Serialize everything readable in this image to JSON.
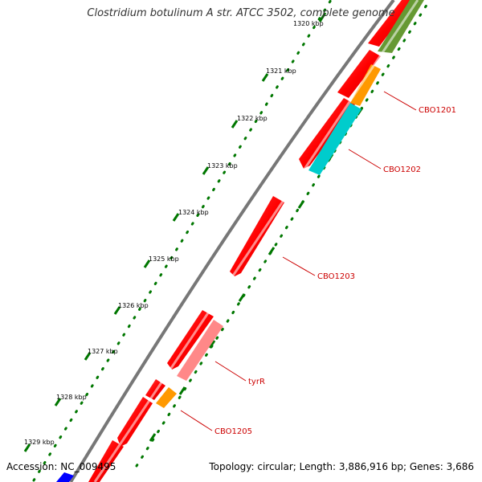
{
  "title": "Clostridium botulinum A str. ATCC 3502, complete genome",
  "accession_label": "Accession: NC_009495",
  "summary_label": "Topology: circular; Length: 3,886,916 bp; Genes: 3,686",
  "ticks": [
    "1320 kbp",
    "1321 kbp",
    "1322 kbp",
    "1323 kbp",
    "1324 kbp",
    "1325 kbp",
    "1326 kbp",
    "1327 kbp",
    "1328 kbp",
    "1329 kbp"
  ],
  "gene_labels": [
    "CBO1201",
    "CBO1202",
    "CBO1203",
    "tyrR",
    "CBO1205"
  ],
  "colors": {
    "cds_red": "#ff0000",
    "gene_orange": "#ff9900",
    "gene_cyan": "#00cccc",
    "gene_olive": "#669933",
    "gene_pink": "#ff8888",
    "gene_blue": "#0000ff",
    "tick_green": "#007700",
    "backbone_gray": "#777777",
    "label_red": "#cc0000"
  }
}
